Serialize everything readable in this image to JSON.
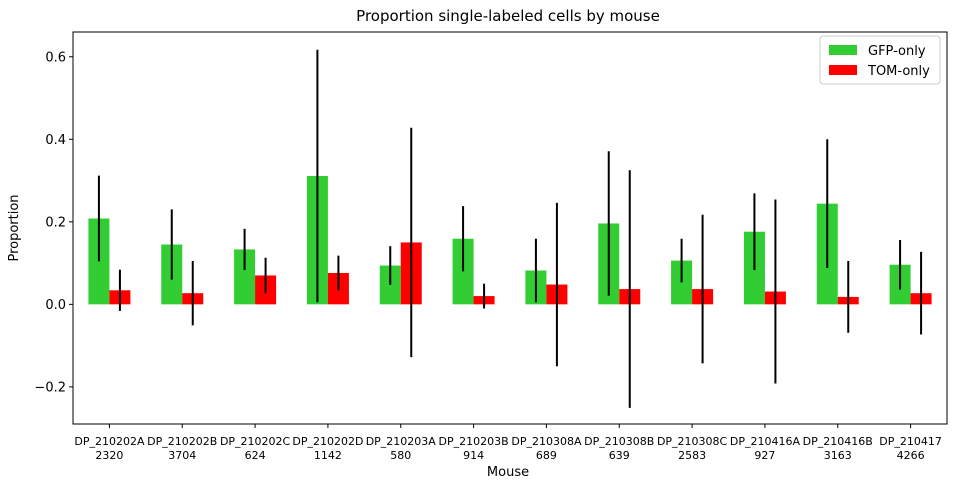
{
  "chart_data": {
    "type": "bar",
    "title": "Proportion single-labeled cells by mouse",
    "xlabel": "Mouse",
    "ylabel": "Proportion",
    "ylim": [
      -0.29,
      0.66
    ],
    "yticks": [
      -0.2,
      0.0,
      0.2,
      0.4,
      0.6
    ],
    "ytick_labels": [
      "−0.2",
      "0.0",
      "0.2",
      "0.4",
      "0.6"
    ],
    "grid": false,
    "legend_position": "top-right",
    "categories": [
      {
        "name": "DP_210202A",
        "count": "2320"
      },
      {
        "name": "DP_210202B",
        "count": "3704"
      },
      {
        "name": "DP_210202C",
        "count": "624"
      },
      {
        "name": "DP_210202D",
        "count": "1142"
      },
      {
        "name": "DP_210203A",
        "count": "580"
      },
      {
        "name": "DP_210203B",
        "count": "914"
      },
      {
        "name": "DP_210308A",
        "count": "689"
      },
      {
        "name": "DP_210308B",
        "count": "639"
      },
      {
        "name": "DP_210308C",
        "count": "2583"
      },
      {
        "name": "DP_210416A",
        "count": "927"
      },
      {
        "name": "DP_210416B",
        "count": "3163"
      },
      {
        "name": "DP_210417",
        "count": "4266"
      }
    ],
    "series": [
      {
        "name": "GFP-only",
        "color": "#32cd32",
        "values": [
          0.208,
          0.145,
          0.133,
          0.311,
          0.094,
          0.159,
          0.082,
          0.196,
          0.106,
          0.176,
          0.244,
          0.096
        ],
        "errors": [
          0.104,
          0.085,
          0.05,
          0.306,
          0.047,
          0.079,
          0.077,
          0.175,
          0.053,
          0.093,
          0.156,
          0.06
        ]
      },
      {
        "name": "TOM-only",
        "color": "#ff0000",
        "values": [
          0.034,
          0.027,
          0.07,
          0.076,
          0.15,
          0.02,
          0.048,
          0.037,
          0.037,
          0.031,
          0.018,
          0.027
        ],
        "errors": [
          0.05,
          0.078,
          0.043,
          0.042,
          0.278,
          0.03,
          0.198,
          0.288,
          0.18,
          0.223,
          0.087,
          0.1
        ]
      }
    ]
  }
}
